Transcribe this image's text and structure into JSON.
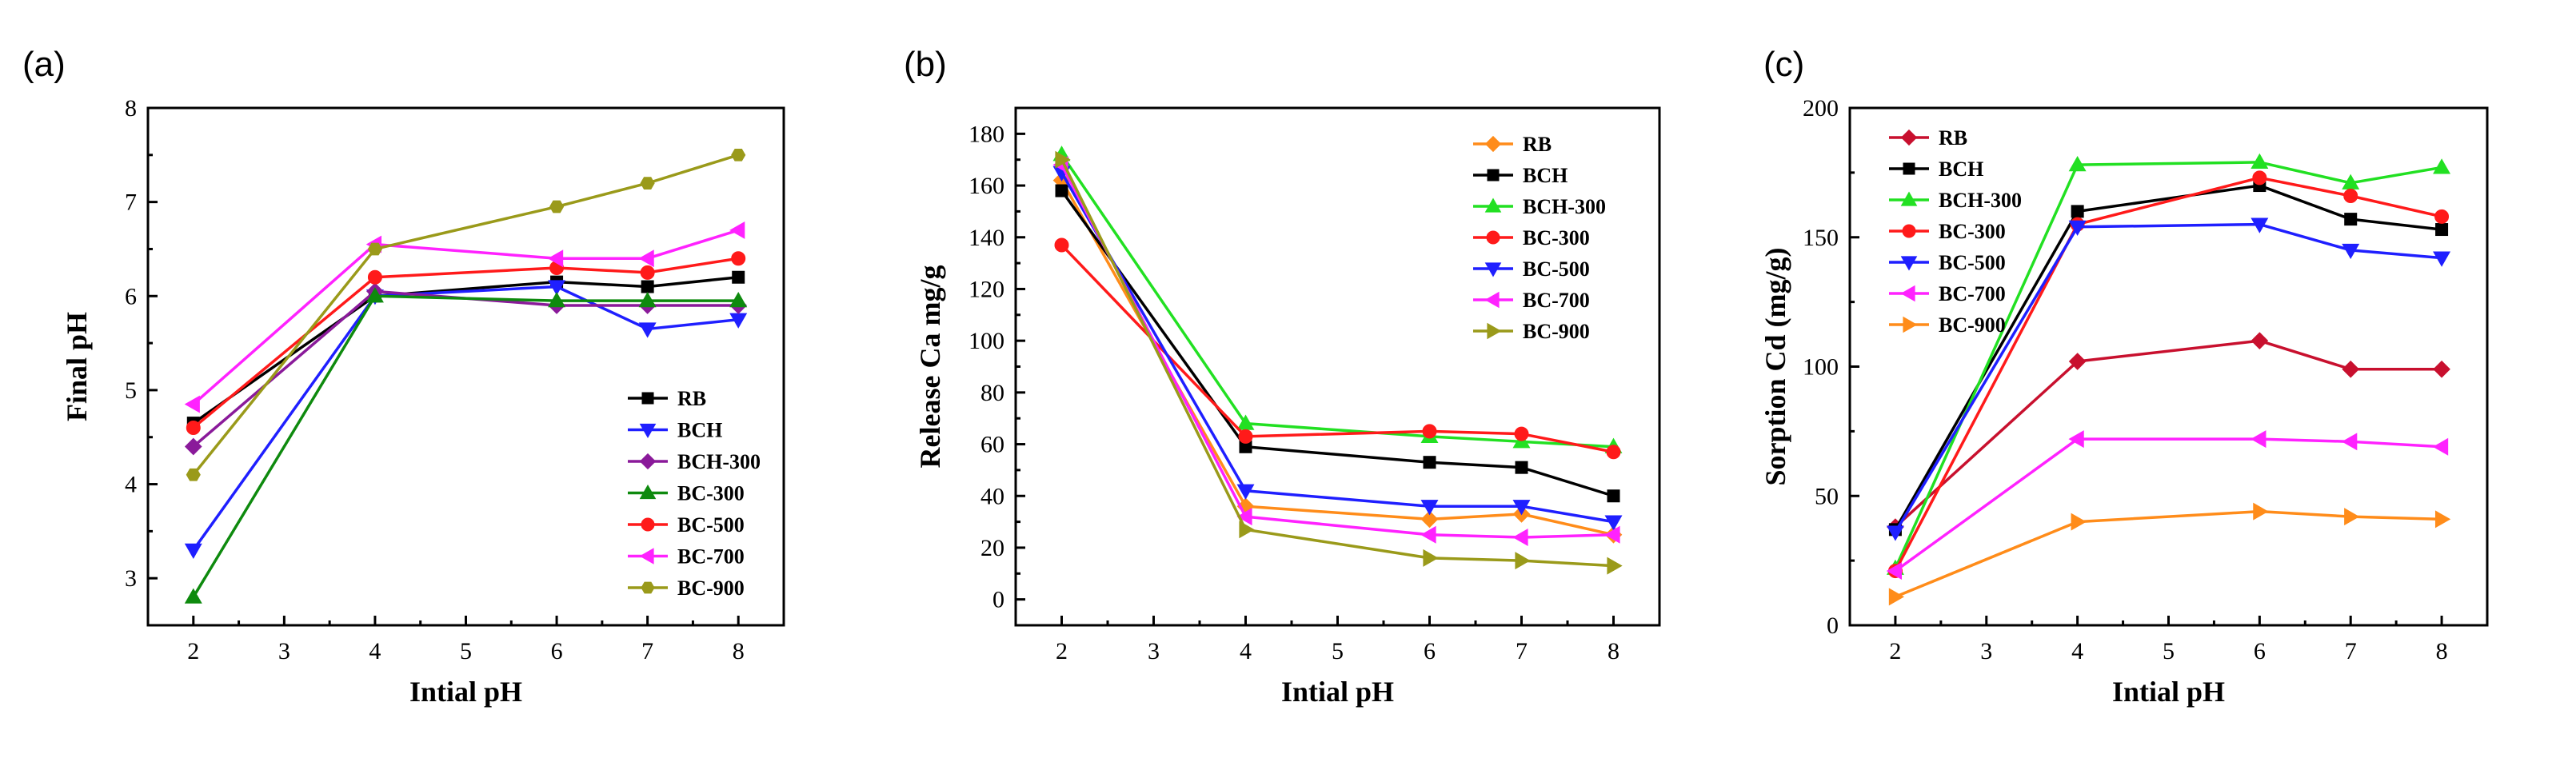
{
  "chart_data": [
    {
      "type": "line",
      "panel_label": "(a)",
      "xlabel": "Intial pH",
      "ylabel": "Final pH",
      "xlim": [
        1.5,
        8.5
      ],
      "ylim": [
        2.5,
        8
      ],
      "xticks": [
        2,
        3,
        4,
        5,
        6,
        7,
        8
      ],
      "yticks": [
        3,
        4,
        5,
        6,
        7,
        8
      ],
      "legend_position": "lower-right",
      "x": [
        2,
        4,
        6,
        7,
        8
      ],
      "series": [
        {
          "name": "RB",
          "color": "#000000",
          "marker": "square",
          "values": [
            4.65,
            6.0,
            6.15,
            6.1,
            6.2
          ]
        },
        {
          "name": "BCH",
          "color": "#1f1fff",
          "marker": "triangle-down",
          "values": [
            3.3,
            6.0,
            6.1,
            5.65,
            5.75
          ]
        },
        {
          "name": "BCH-300",
          "color": "#8a1a9a",
          "marker": "diamond",
          "values": [
            4.4,
            6.05,
            5.9,
            5.9,
            5.9
          ]
        },
        {
          "name": "BC-300",
          "color": "#0e8a0e",
          "marker": "triangle-up",
          "values": [
            2.8,
            6.0,
            5.95,
            5.95,
            5.95
          ]
        },
        {
          "name": "BC-500",
          "color": "#ff1a1a",
          "marker": "circle",
          "values": [
            4.6,
            6.2,
            6.3,
            6.25,
            6.4
          ]
        },
        {
          "name": "BC-700",
          "color": "#ff22ff",
          "marker": "triangle-left",
          "values": [
            4.85,
            6.55,
            6.4,
            6.4,
            6.7
          ]
        },
        {
          "name": "BC-900",
          "color": "#9a9a1a",
          "marker": "hexagon",
          "values": [
            4.1,
            6.5,
            6.95,
            7.2,
            7.5
          ]
        }
      ]
    },
    {
      "type": "line",
      "panel_label": "(b)",
      "xlabel": "Intial pH",
      "ylabel": "Release Ca mg/g",
      "xlim": [
        1.5,
        8.5
      ],
      "ylim": [
        -10,
        190
      ],
      "xticks": [
        2,
        3,
        4,
        5,
        6,
        7,
        8
      ],
      "yticks": [
        0,
        20,
        40,
        60,
        80,
        100,
        120,
        140,
        160,
        180
      ],
      "legend_position": "top-right",
      "x": [
        2,
        4,
        6,
        7,
        8
      ],
      "series": [
        {
          "name": "RB",
          "color": "#ff8c1a",
          "marker": "diamond",
          "values": [
            162,
            36,
            31,
            33,
            25
          ]
        },
        {
          "name": "BCH",
          "color": "#000000",
          "marker": "square",
          "values": [
            158,
            59,
            53,
            51,
            40
          ]
        },
        {
          "name": "BCH-300",
          "color": "#22e022",
          "marker": "triangle-up",
          "values": [
            172,
            68,
            63,
            61,
            59
          ]
        },
        {
          "name": "BC-300",
          "color": "#ff1a1a",
          "marker": "circle",
          "values": [
            137,
            63,
            65,
            64,
            57
          ]
        },
        {
          "name": "BC-500",
          "color": "#1f1fff",
          "marker": "triangle-down",
          "values": [
            165,
            42,
            36,
            36,
            30
          ]
        },
        {
          "name": "BC-700",
          "color": "#ff22ff",
          "marker": "triangle-left",
          "values": [
            168,
            32,
            25,
            24,
            25
          ]
        },
        {
          "name": "BC-900",
          "color": "#9a9a1a",
          "marker": "triangle-right",
          "values": [
            170,
            27,
            16,
            15,
            13
          ]
        }
      ]
    },
    {
      "type": "line",
      "panel_label": "(c)",
      "xlabel": "Intial pH",
      "ylabel": "Sorption Cd (mg/g)",
      "xlim": [
        1.5,
        8.5
      ],
      "ylim": [
        0,
        200
      ],
      "xticks": [
        2,
        3,
        4,
        5,
        6,
        7,
        8
      ],
      "yticks": [
        0,
        50,
        100,
        150,
        200
      ],
      "legend_position": "top-left",
      "x": [
        2,
        4,
        6,
        7,
        8
      ],
      "series": [
        {
          "name": "RB",
          "color": "#c8102e",
          "marker": "diamond",
          "values": [
            38,
            102,
            110,
            99,
            99
          ]
        },
        {
          "name": "BCH",
          "color": "#000000",
          "marker": "square",
          "values": [
            37,
            160,
            170,
            157,
            153
          ]
        },
        {
          "name": "BCH-300",
          "color": "#22e022",
          "marker": "triangle-up",
          "values": [
            22,
            178,
            179,
            171,
            177
          ]
        },
        {
          "name": "BC-300",
          "color": "#ff1a1a",
          "marker": "circle",
          "values": [
            21,
            155,
            173,
            166,
            158
          ]
        },
        {
          "name": "BC-500",
          "color": "#1f1fff",
          "marker": "triangle-down",
          "values": [
            36,
            154,
            155,
            145,
            142
          ]
        },
        {
          "name": "BC-700",
          "color": "#ff22ff",
          "marker": "triangle-left",
          "values": [
            21,
            72,
            72,
            71,
            69
          ]
        },
        {
          "name": "BC-900",
          "color": "#ff8c1a",
          "marker": "triangle-right",
          "values": [
            11,
            40,
            44,
            42,
            41
          ]
        }
      ]
    }
  ]
}
